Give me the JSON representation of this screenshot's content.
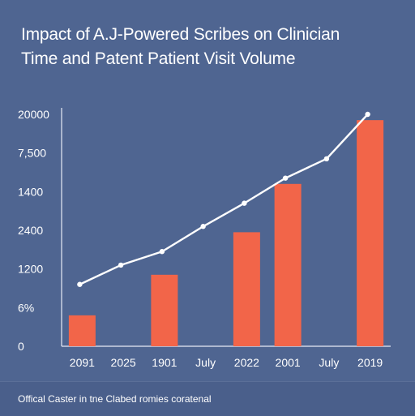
{
  "chart_data": {
    "type": "bar",
    "title_line1": "Impact of A.J-Powered Scribes on Clinician",
    "title_line2": "Time and Patent Patient Visit Volume",
    "ytick_labels": [
      "0",
      "6%",
      "1200",
      "2400",
      "1400",
      "7,500",
      "20000"
    ],
    "categories": [
      "2091",
      "2025",
      "1901",
      "July",
      "2022",
      "2001",
      "July",
      "2019"
    ],
    "bar_series": {
      "values": [
        0.8,
        null,
        1.85,
        null,
        2.95,
        4.2,
        null,
        5.85
      ],
      "color": "#f26549"
    },
    "line_series": {
      "values": [
        1.6,
        2.1,
        2.45,
        3.1,
        3.7,
        4.35,
        4.85,
        6.0
      ],
      "color": "#ffffff"
    },
    "ylim": [
      0,
      6
    ],
    "grid": false,
    "footer": "Offical Caster in tne Clabed romies coratenal"
  }
}
